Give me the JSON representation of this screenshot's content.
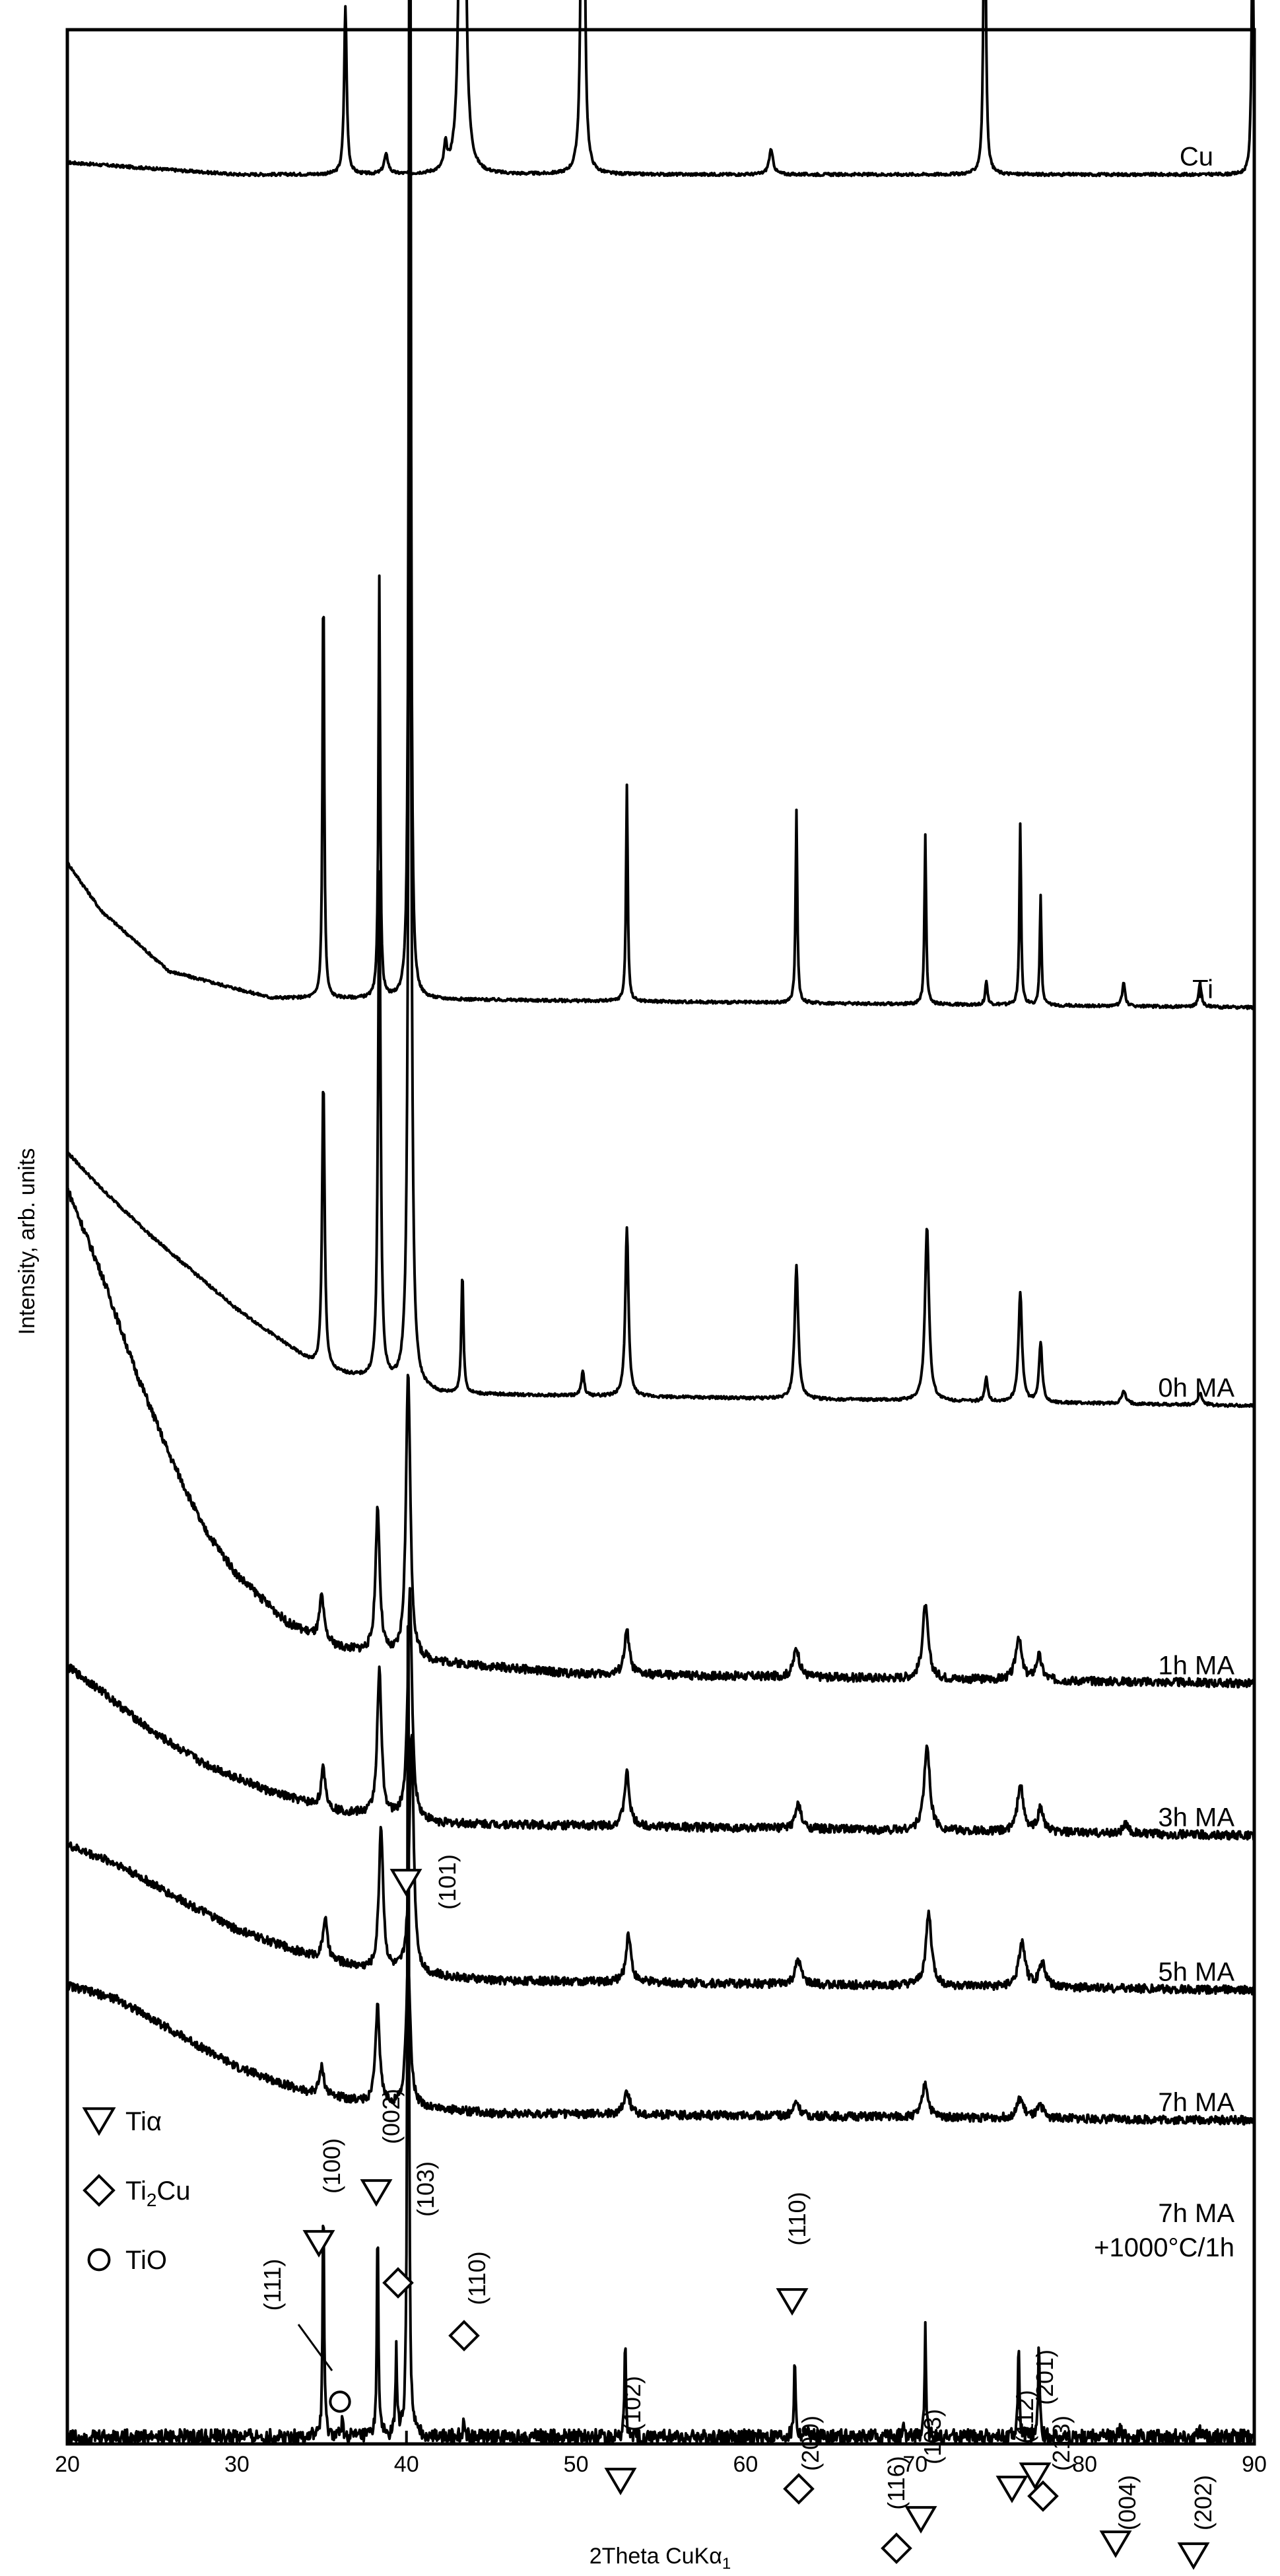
{
  "chart_data": {
    "type": "line",
    "title": "",
    "xlabel": "2Theta CuKα",
    "xlabel_subscript": "1",
    "ylabel": "Intensity, arb. units",
    "xlim": [
      20,
      90
    ],
    "xticks": [
      20,
      30,
      40,
      50,
      60,
      70,
      80,
      90
    ],
    "y_ticks_labeled": false,
    "grid": false,
    "color": "#000000",
    "series": [
      {
        "name": "Cu",
        "offset": 0.94,
        "background": [
          [
            20,
            0.005
          ],
          [
            30,
            0.0
          ],
          [
            90,
            0.0
          ]
        ],
        "peaks": [
          [
            36.4,
            0.07,
            0.18
          ],
          [
            38.8,
            0.008,
            0.3
          ],
          [
            42.3,
            0.01,
            0.2
          ],
          [
            43.3,
            0.9,
            0.15
          ],
          [
            50.4,
            0.36,
            0.15
          ],
          [
            61.5,
            0.01,
            0.3
          ],
          [
            74.1,
            0.15,
            0.15
          ],
          [
            89.9,
            0.1,
            0.15
          ]
        ]
      },
      {
        "name": "Ti",
        "offset": 0.595,
        "background": [
          [
            20,
            0.06
          ],
          [
            22,
            0.04
          ],
          [
            26,
            0.015
          ],
          [
            32,
            0.004
          ],
          [
            90,
            0.0
          ]
        ],
        "peaks": [
          [
            35.1,
            0.175,
            0.12
          ],
          [
            38.4,
            0.175,
            0.12
          ],
          [
            40.2,
            0.635,
            0.12
          ],
          [
            53.0,
            0.09,
            0.12
          ],
          [
            63.0,
            0.08,
            0.12
          ],
          [
            70.6,
            0.07,
            0.12
          ],
          [
            74.2,
            0.01,
            0.15
          ],
          [
            76.2,
            0.075,
            0.12
          ],
          [
            77.4,
            0.045,
            0.12
          ],
          [
            82.3,
            0.01,
            0.2
          ],
          [
            86.8,
            0.01,
            0.2
          ]
        ]
      },
      {
        "name": "0h MA",
        "offset": 0.43,
        "background": [
          [
            20,
            0.105
          ],
          [
            22,
            0.09
          ],
          [
            25,
            0.07
          ],
          [
            30,
            0.04
          ],
          [
            35,
            0.015
          ],
          [
            42,
            0.005
          ],
          [
            90,
            0.0
          ]
        ],
        "peaks": [
          [
            35.1,
            0.12,
            0.18
          ],
          [
            38.4,
            0.21,
            0.18
          ],
          [
            40.2,
            0.5,
            0.18
          ],
          [
            43.3,
            0.05,
            0.15
          ],
          [
            50.4,
            0.01,
            0.2
          ],
          [
            53.0,
            0.07,
            0.22
          ],
          [
            63.0,
            0.055,
            0.25
          ],
          [
            70.7,
            0.072,
            0.28
          ],
          [
            74.2,
            0.01,
            0.2
          ],
          [
            76.2,
            0.045,
            0.25
          ],
          [
            77.4,
            0.025,
            0.22
          ],
          [
            82.3,
            0.005,
            0.3
          ],
          [
            86.8,
            0.005,
            0.3
          ]
        ]
      },
      {
        "name": "1h MA",
        "offset": 0.315,
        "background": [
          [
            20,
            0.205
          ],
          [
            22,
            0.17
          ],
          [
            24,
            0.13
          ],
          [
            26,
            0.095
          ],
          [
            28,
            0.065
          ],
          [
            30,
            0.045
          ],
          [
            33,
            0.025
          ],
          [
            36,
            0.015
          ],
          [
            40,
            0.01
          ],
          [
            50,
            0.004
          ],
          [
            90,
            0.0
          ]
        ],
        "peaks": [
          [
            35.0,
            0.018,
            0.3
          ],
          [
            38.3,
            0.06,
            0.3
          ],
          [
            40.1,
            0.12,
            0.3
          ],
          [
            53.0,
            0.018,
            0.35
          ],
          [
            63.0,
            0.012,
            0.4
          ],
          [
            70.6,
            0.03,
            0.4
          ],
          [
            76.1,
            0.018,
            0.4
          ],
          [
            77.3,
            0.01,
            0.4
          ]
        ]
      },
      {
        "name": "3h MA",
        "offset": 0.252,
        "background": [
          [
            20,
            0.07
          ],
          [
            22,
            0.06
          ],
          [
            25,
            0.043
          ],
          [
            28,
            0.03
          ],
          [
            32,
            0.018
          ],
          [
            36,
            0.01
          ],
          [
            42,
            0.005
          ],
          [
            90,
            0.0
          ]
        ],
        "peaks": [
          [
            35.1,
            0.016,
            0.3
          ],
          [
            38.4,
            0.06,
            0.3
          ],
          [
            40.2,
            0.095,
            0.3
          ],
          [
            53.0,
            0.022,
            0.35
          ],
          [
            63.1,
            0.01,
            0.4
          ],
          [
            70.7,
            0.035,
            0.4
          ],
          [
            76.2,
            0.02,
            0.4
          ],
          [
            77.4,
            0.01,
            0.4
          ],
          [
            82.4,
            0.004,
            0.4
          ]
        ]
      },
      {
        "name": "5h MA",
        "offset": 0.188,
        "background": [
          [
            20,
            0.06
          ],
          [
            23,
            0.052
          ],
          [
            26,
            0.04
          ],
          [
            30,
            0.025
          ],
          [
            34,
            0.015
          ],
          [
            38,
            0.008
          ],
          [
            45,
            0.004
          ],
          [
            90,
            0.0
          ]
        ],
        "peaks": [
          [
            35.2,
            0.017,
            0.3
          ],
          [
            38.5,
            0.06,
            0.3
          ],
          [
            40.3,
            0.1,
            0.3
          ],
          [
            53.1,
            0.02,
            0.35
          ],
          [
            63.1,
            0.01,
            0.4
          ],
          [
            70.8,
            0.03,
            0.4
          ],
          [
            76.3,
            0.018,
            0.45
          ],
          [
            77.5,
            0.01,
            0.45
          ]
        ]
      },
      {
        "name": "7h MA",
        "offset": 0.134,
        "background": [
          [
            20,
            0.056
          ],
          [
            23,
            0.05
          ],
          [
            26,
            0.038
          ],
          [
            30,
            0.022
          ],
          [
            34,
            0.012
          ],
          [
            38,
            0.007
          ],
          [
            45,
            0.003
          ],
          [
            90,
            0.0
          ]
        ],
        "peaks": [
          [
            35.0,
            0.012,
            0.3
          ],
          [
            38.3,
            0.04,
            0.3
          ],
          [
            40.1,
            0.06,
            0.3
          ],
          [
            53.0,
            0.01,
            0.4
          ],
          [
            63.0,
            0.006,
            0.4
          ],
          [
            70.6,
            0.014,
            0.4
          ],
          [
            76.2,
            0.008,
            0.45
          ],
          [
            77.4,
            0.005,
            0.45
          ]
        ]
      },
      {
        "name": "7h MA\n+1000°C/1h",
        "offset": 0.003,
        "background": [
          [
            20,
            0.0
          ],
          [
            90,
            0.0
          ]
        ],
        "peaks": [
          [
            35.1,
            0.1,
            0.1
          ],
          [
            36.2,
            0.007,
            0.12
          ],
          [
            38.3,
            0.093,
            0.1
          ],
          [
            39.4,
            0.038,
            0.1
          ],
          [
            40.1,
            0.387,
            0.1
          ],
          [
            43.4,
            0.008,
            0.12
          ],
          [
            52.9,
            0.04,
            0.1
          ],
          [
            62.9,
            0.035,
            0.1
          ],
          [
            63.6,
            0.004,
            0.12
          ],
          [
            69.3,
            0.004,
            0.12
          ],
          [
            70.6,
            0.045,
            0.1
          ],
          [
            76.1,
            0.038,
            0.1
          ],
          [
            77.3,
            0.04,
            0.1
          ],
          [
            82.1,
            0.004,
            0.12
          ],
          [
            86.8,
            0.003,
            0.12
          ]
        ]
      }
    ],
    "annotations": [
      {
        "text": "(101)",
        "x": 40.1,
        "phase": "Tiα",
        "rotated": true
      },
      {
        "text": "(100)",
        "x": 35.1,
        "phase": "Tiα",
        "rotated": true
      },
      {
        "text": "(002)",
        "x": 38.3,
        "phase": "Tiα",
        "rotated": true
      },
      {
        "text": "(103)",
        "x": 39.4,
        "phase": "Ti2Cu",
        "rotated": true
      },
      {
        "text": "(110)",
        "x": 43.4,
        "phase": "Ti2Cu",
        "rotated": true
      },
      {
        "text": "(111)",
        "x": 36.2,
        "phase": "TiO",
        "rotated": true
      },
      {
        "text": "(102)",
        "x": 52.9,
        "phase": "Tiα",
        "rotated": true
      },
      {
        "text": "(110)",
        "x": 62.9,
        "phase": "Tiα",
        "rotated": true
      },
      {
        "text": "(200)",
        "x": 63.6,
        "phase": "Ti2Cu",
        "rotated": true
      },
      {
        "text": "(116)",
        "x": 69.3,
        "phase": "Ti2Cu",
        "rotated": true
      },
      {
        "text": "(103)",
        "x": 70.6,
        "phase": "Tiα",
        "rotated": true
      },
      {
        "text": "(112)",
        "x": 76.1,
        "phase": "Tiα",
        "rotated": true
      },
      {
        "text": "(201)",
        "x": 77.3,
        "phase": "Tiα",
        "rotated": true
      },
      {
        "text": "(213)",
        "x": 77.6,
        "phase": "Ti2Cu",
        "rotated": true
      },
      {
        "text": "(004)",
        "x": 82.1,
        "phase": "Tiα",
        "rotated": true
      },
      {
        "text": "(202)",
        "x": 86.8,
        "phase": "Tiα",
        "rotated": true
      }
    ],
    "legend": {
      "placement": "bottom-left",
      "entries": [
        {
          "label": "Tiα",
          "marker": "triangle-down"
        },
        {
          "label": "Ti",
          "sub": "2",
          "label_tail": "Cu",
          "marker": "diamond"
        },
        {
          "label": "TiO",
          "marker": "circle"
        }
      ]
    }
  }
}
